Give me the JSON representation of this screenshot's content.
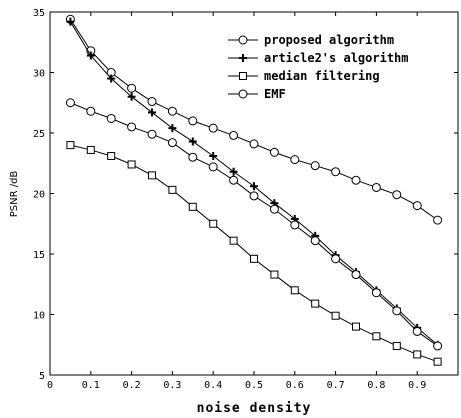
{
  "chart_data": {
    "type": "line",
    "xlabel": "noise density",
    "ylabel": "PSNR /dB",
    "xlim": [
      0,
      1.0
    ],
    "ylim": [
      5,
      35
    ],
    "xticks": [
      0,
      0.1,
      0.2,
      0.3,
      0.4,
      0.5,
      0.6,
      0.7,
      0.8,
      0.9
    ],
    "xtick_labels": [
      "0",
      "0.1",
      "0.2",
      "0.3",
      "0.4",
      "0.5",
      "0.6",
      "0.7",
      "0.8",
      "0.9"
    ],
    "yticks": [
      5,
      10,
      15,
      20,
      25,
      30,
      35
    ],
    "ytick_labels": [
      "5",
      "10",
      "15",
      "20",
      "25",
      "30",
      "35"
    ],
    "grid": false,
    "legend_position": "top-right",
    "x": [
      0.05,
      0.1,
      0.15,
      0.2,
      0.25,
      0.3,
      0.35,
      0.4,
      0.45,
      0.5,
      0.55,
      0.6,
      0.65,
      0.7,
      0.75,
      0.8,
      0.85,
      0.9,
      0.95
    ],
    "series": [
      {
        "name": "proposed algorithm",
        "marker": "circle",
        "values": [
          34.4,
          31.8,
          30.0,
          28.7,
          27.6,
          26.8,
          26.0,
          25.4,
          24.8,
          24.1,
          23.4,
          22.8,
          22.3,
          21.8,
          21.1,
          20.5,
          19.9,
          19.0,
          17.8
        ]
      },
      {
        "name": "article2's algorithm",
        "marker": "plus",
        "values": [
          34.2,
          31.4,
          29.5,
          28.0,
          26.7,
          25.4,
          24.3,
          23.1,
          21.8,
          20.6,
          19.2,
          17.9,
          16.5,
          14.9,
          13.5,
          12.0,
          10.5,
          8.9,
          7.5
        ]
      },
      {
        "name": "median filtering",
        "marker": "square",
        "values": [
          24.0,
          23.6,
          23.1,
          22.4,
          21.5,
          20.3,
          18.9,
          17.5,
          16.1,
          14.6,
          13.3,
          12.0,
          10.9,
          9.9,
          9.0,
          8.2,
          7.4,
          6.7,
          6.1
        ]
      },
      {
        "name": "EMF",
        "marker": "circle",
        "values": [
          27.5,
          26.8,
          26.2,
          25.5,
          24.9,
          24.2,
          23.0,
          22.2,
          21.1,
          19.8,
          18.7,
          17.4,
          16.1,
          14.6,
          13.3,
          11.8,
          10.3,
          8.6,
          7.4
        ]
      }
    ]
  }
}
